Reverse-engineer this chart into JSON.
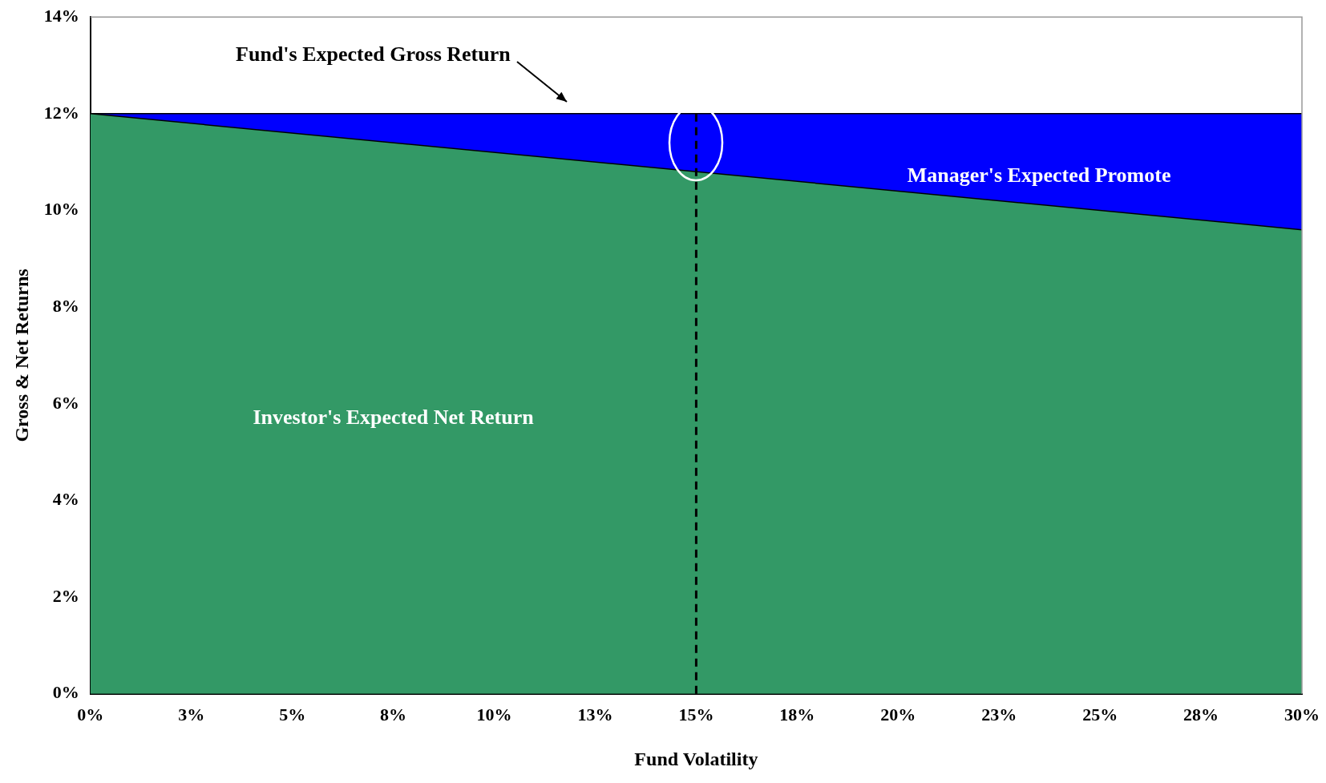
{
  "chart_data": {
    "type": "area",
    "stacked": true,
    "xlabel": "Fund Volatility",
    "ylabel": "Gross & Net Returns",
    "x": [
      0,
      30
    ],
    "series": [
      {
        "color": "#339966",
        "values": [
          12,
          9.6
        ]
      },
      {
        "color": "#0000ff",
        "values": [
          0,
          2.4
        ]
      }
    ],
    "xlim": [
      0,
      30
    ],
    "xticks": [
      {
        "value": 0,
        "label": "0%"
      },
      {
        "value": 2.5,
        "label": "3%"
      },
      {
        "value": 5,
        "label": "5%"
      },
      {
        "value": 7.5,
        "label": "8%"
      },
      {
        "value": 10,
        "label": "10%"
      },
      {
        "value": 12.5,
        "label": "13%"
      },
      {
        "value": 15,
        "label": "15%"
      },
      {
        "value": 17.5,
        "label": "18%"
      },
      {
        "value": 20,
        "label": "20%"
      },
      {
        "value": 22.5,
        "label": "23%"
      },
      {
        "value": 25,
        "label": "25%"
      },
      {
        "value": 27.5,
        "label": "28%"
      },
      {
        "value": 30,
        "label": "30%"
      }
    ],
    "ylim": [
      0,
      14
    ],
    "yticks": [
      {
        "value": 0,
        "label": "0%"
      },
      {
        "value": 2,
        "label": "2%"
      },
      {
        "value": 4,
        "label": "4%"
      },
      {
        "value": 6,
        "label": "6%"
      },
      {
        "value": 8,
        "label": "8%"
      },
      {
        "value": 10,
        "label": "10%"
      },
      {
        "value": 12,
        "label": "12%"
      },
      {
        "value": 14,
        "label": "14%"
      }
    ],
    "grid": false,
    "legend": false,
    "ref_lines": [
      {
        "axis": "x",
        "value": 15,
        "color": "#000000",
        "line_style": "dashed"
      }
    ],
    "annotations": [
      "Fund's Expected Gross Return",
      "Manager's Expected Promote",
      "Investor's Expected Net Return"
    ]
  }
}
